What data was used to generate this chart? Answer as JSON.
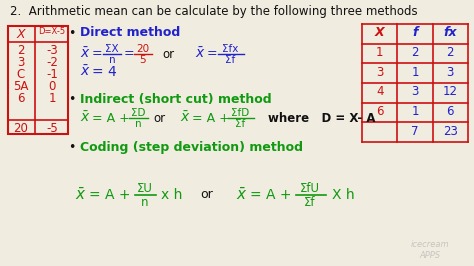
{
  "bg_color": "#f0ede0",
  "title": "2.  Arithmetic mean can be calculate by the following three methods",
  "title_color": "#111111",
  "title_fontsize": 8.5,
  "red": "#cc1111",
  "blue": "#2222cc",
  "green": "#119911",
  "black": "#111111",
  "bullet_color": "#111111",
  "section1": "Direct method",
  "section2": "Indirect (short cut) method",
  "section3": "Coding (step deviation) method",
  "where_text": "where   D = X- A",
  "left_table_x_vals": [
    "2",
    "3",
    "C",
    "5A",
    "6",
    "20"
  ],
  "left_table_d_vals": [
    "-3",
    "-2",
    "-1",
    "0",
    "1",
    "-5"
  ],
  "right_table_headers": [
    "X",
    "f",
    "fx"
  ],
  "right_table_data": [
    [
      "1",
      "2",
      "2"
    ],
    [
      "3",
      "1",
      "3"
    ],
    [
      "4",
      "3",
      "12"
    ],
    [
      "6",
      "1",
      "6"
    ],
    [
      "",
      "7",
      "23"
    ]
  ]
}
